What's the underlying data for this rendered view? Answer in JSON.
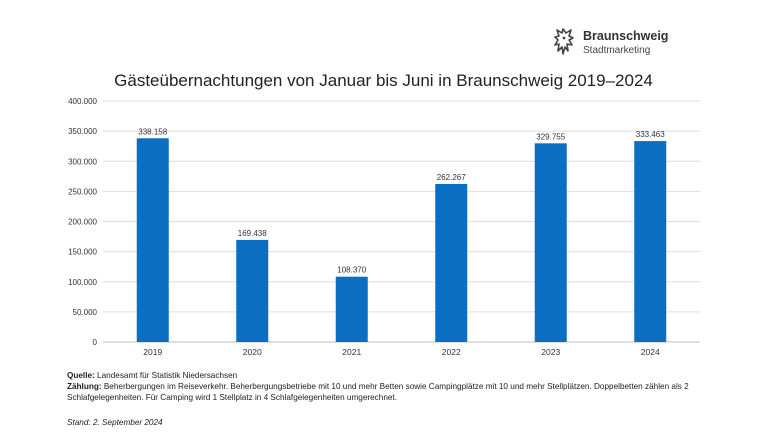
{
  "logo": {
    "name": "Braunschweig",
    "subtitle": "Stadtmarketing",
    "icon": "lion-icon"
  },
  "chart_data": {
    "type": "bar",
    "title": "Gästeübernachtungen von Januar bis Juni in Braunschweig 2019–2024",
    "xlabel": "",
    "ylabel": "",
    "categories": [
      "2019",
      "2020",
      "2021",
      "2022",
      "2023",
      "2024"
    ],
    "values": [
      338158,
      169438,
      108370,
      262267,
      329755,
      333463
    ],
    "value_labels": [
      "338.158",
      "169.438",
      "108.370",
      "262.267",
      "329.755",
      "333.463"
    ],
    "ylim": [
      0,
      400000
    ],
    "yticks": [
      0,
      50000,
      100000,
      150000,
      200000,
      250000,
      300000,
      350000,
      400000
    ],
    "ytick_labels": [
      "0",
      "50.000",
      "100.000",
      "150.000",
      "200.000",
      "250.000",
      "300.000",
      "350.000",
      "400.000"
    ],
    "grid": true,
    "legend": "none",
    "bar_color": "#0a6fc2"
  },
  "footer": {
    "source_label": "Quelle:",
    "source_text": "Landesamt für Statistik Niedersachsen",
    "count_label": "Zählung:",
    "count_text": "Beherbergungen im Reiseverkehr. Beherbergungsbetriebe mit 10 und mehr Betten sowie Campingplätze mit 10 und mehr Stellplätzen. Doppelbetten zählen als 2 Schlafgelegenheiten. Für Camping wird 1 Stellplatz in 4 Schlafgelegenheiten umgerechnet.",
    "stand": "Stand: 2. September 2024"
  }
}
